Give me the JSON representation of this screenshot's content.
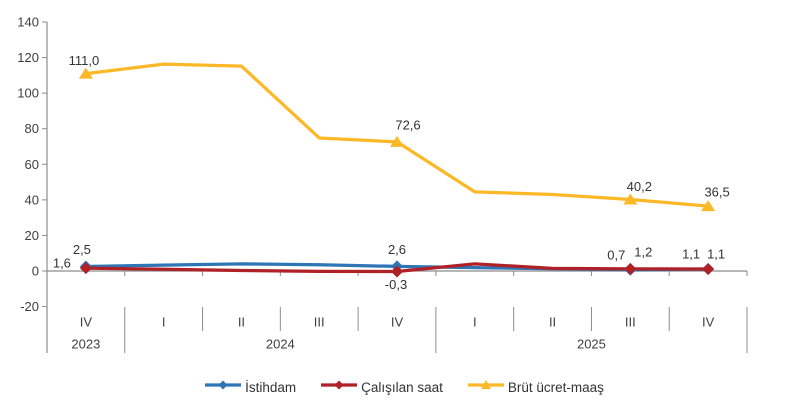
{
  "chart_data": {
    "type": "line",
    "title": "",
    "x_quarters": [
      "IV",
      "I",
      "II",
      "III",
      "IV",
      "I",
      "II",
      "III",
      "IV"
    ],
    "year_groups": [
      {
        "label": "2023",
        "span": 1
      },
      {
        "label": "2024",
        "span": 4
      },
      {
        "label": "2025",
        "span": 4
      }
    ],
    "ylim": [
      -20,
      140
    ],
    "ytick_step": 20,
    "ytick_labels": [
      "140",
      "120",
      "100",
      "80",
      "60",
      "40",
      "20",
      "0",
      "-20"
    ],
    "grid": false,
    "legend_position": "bottom",
    "marker_indices": [
      0,
      4,
      7,
      8
    ],
    "series": [
      {
        "name": "İstihdam",
        "slug": "istihdam",
        "color": "#2E75B6",
        "marker": "diamond",
        "values": [
          2.5,
          3.3,
          4.0,
          3.5,
          2.6,
          1.9,
          1.3,
          0.7,
          1.1
        ],
        "labels": [
          {
            "i": 0,
            "text": "2,5",
            "dx": -4,
            "dy": -17
          },
          {
            "i": 4,
            "text": "2,6",
            "dx": 0,
            "dy": -17
          },
          {
            "i": 7,
            "text": "0,7",
            "dx": -14,
            "dy": -15
          },
          {
            "i": 8,
            "text": "1,1",
            "dx": -17,
            "dy": -15
          }
        ]
      },
      {
        "name": "Çalışılan saat",
        "slug": "calisilan-saat",
        "color": "#AF2127",
        "marker": "diamond",
        "values": [
          1.6,
          1.0,
          0.3,
          -0.2,
          -0.3,
          4.0,
          1.5,
          1.2,
          1.1
        ],
        "labels": [
          {
            "i": 0,
            "text": "1,6",
            "dx": -24,
            "dy": -5
          },
          {
            "i": 4,
            "text": "-0,3",
            "dx": -1,
            "dy": 13
          },
          {
            "i": 7,
            "text": "1,2",
            "dx": 13,
            "dy": -17
          },
          {
            "i": 8,
            "text": "1,1",
            "dx": 8,
            "dy": -15
          }
        ]
      },
      {
        "name": "Brüt ücret-maaş",
        "slug": "brut-ucret-maas",
        "color": "#FCB827",
        "marker": "triangle",
        "values": [
          111.0,
          116.3,
          115.2,
          74.8,
          72.6,
          44.5,
          43.0,
          40.2,
          36.5
        ],
        "labels": [
          {
            "i": 0,
            "text": "111,0",
            "dx": -2,
            "dy": -13
          },
          {
            "i": 4,
            "text": "72,6",
            "dx": 11,
            "dy": -17
          },
          {
            "i": 7,
            "text": "40,2",
            "dx": 9,
            "dy": -13
          },
          {
            "i": 8,
            "text": "36,5",
            "dx": 9,
            "dy": -14
          }
        ]
      }
    ],
    "colors": {
      "axis": "#8C8C8C",
      "separator": "#8C8C8C",
      "tick_text": "#3F3F3F",
      "data_label_text": "#333333"
    }
  }
}
